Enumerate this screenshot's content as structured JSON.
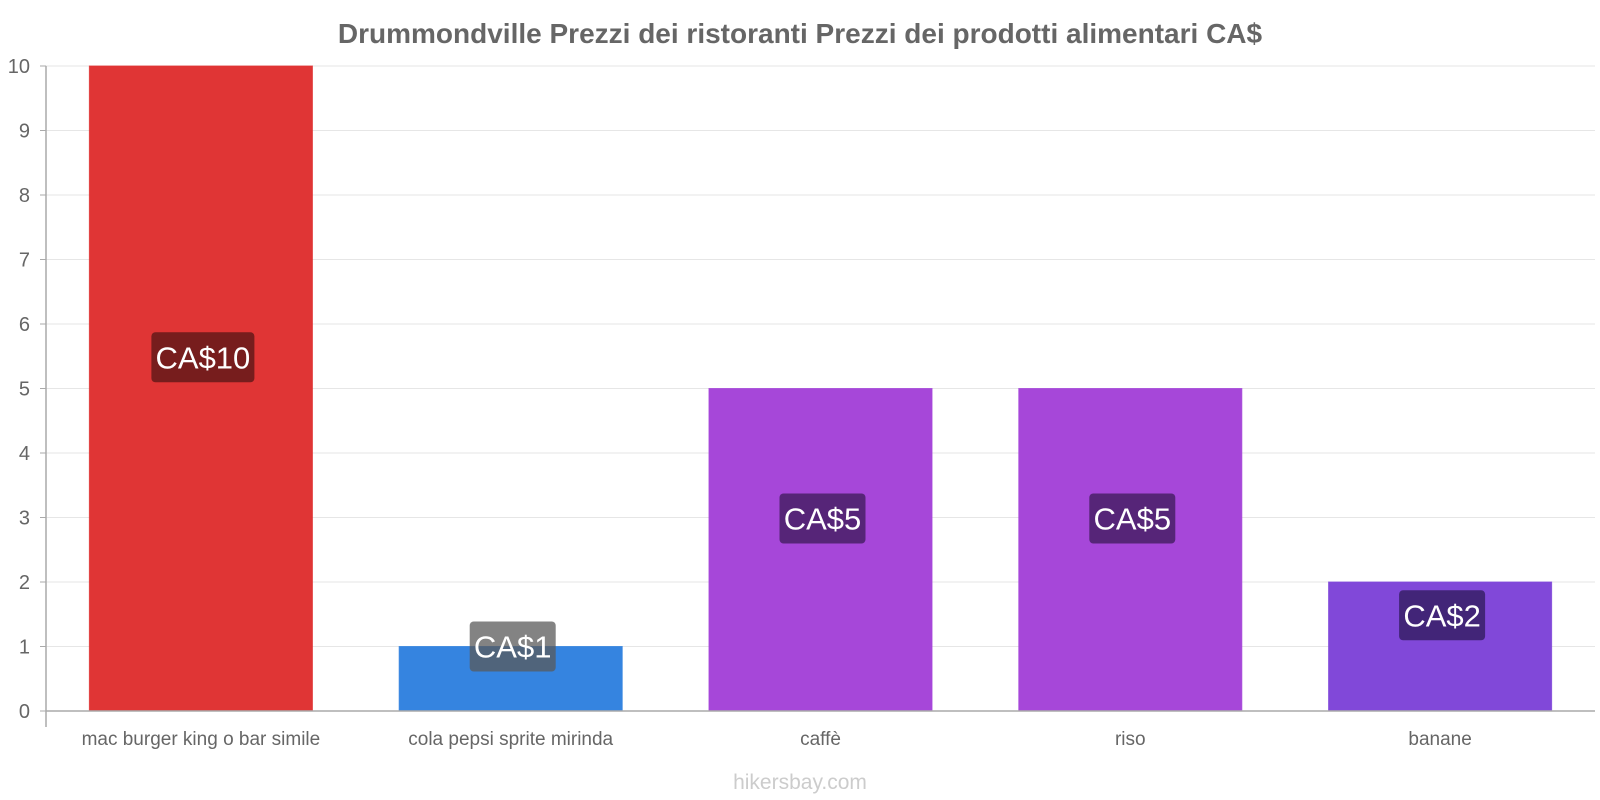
{
  "chart_data": {
    "type": "bar",
    "title": "Drummondville Prezzi dei ristoranti Prezzi dei prodotti alimentari CA$",
    "categories": [
      "mac burger king o bar simile",
      "cola pepsi sprite mirinda",
      "caffè",
      "riso",
      "banane"
    ],
    "values": [
      10,
      1,
      5,
      5,
      2
    ],
    "data_labels": [
      "CA$10",
      "CA$1",
      "CA$5",
      "CA$5",
      "CA$2"
    ],
    "bar_colors": [
      "#e03535",
      "#3584e0",
      "#a647d9",
      "#a647d9",
      "#8148d9"
    ],
    "label_bg_colors": [
      "#6e1b1b",
      "#1b3d6e",
      "#4f2370",
      "#4f2370",
      "#3d2370"
    ],
    "ylim": [
      0,
      10
    ],
    "yticks": [
      0,
      1,
      2,
      3,
      4,
      5,
      6,
      7,
      8,
      9,
      10
    ],
    "grid": true,
    "xlabel": "",
    "ylabel": ""
  },
  "footer": "hikersbay.com"
}
